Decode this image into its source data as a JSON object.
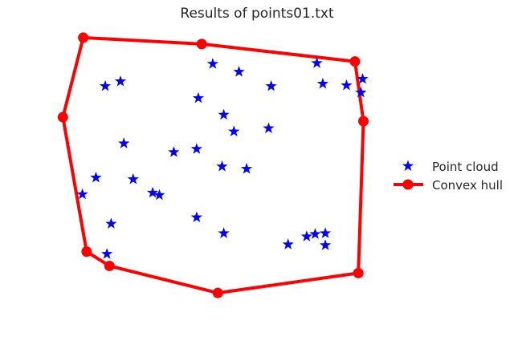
{
  "chart_data": {
    "type": "scatter",
    "title": "Results of points01.txt",
    "xlabel": "",
    "ylabel": "",
    "xlim": [
      0,
      370
    ],
    "ylim": [
      0,
      350
    ],
    "grid": false,
    "axes_visible": false,
    "legend_position": "center-right",
    "series": [
      {
        "name": "Point cloud",
        "kind": "markers",
        "marker": "star",
        "color": "#0000ff",
        "points": [
          [
            58,
            282
          ],
          [
            78,
            143
          ],
          [
            112,
            205
          ],
          [
            120,
            208
          ],
          [
            63,
            244
          ],
          [
            45,
            186
          ],
          [
            89,
            188
          ],
          [
            29,
            207
          ],
          [
            137,
            154
          ],
          [
            223,
            175
          ],
          [
            164,
            150
          ],
          [
            208,
            128
          ],
          [
            272,
            270
          ],
          [
            316,
            271
          ],
          [
            249,
            124
          ],
          [
            166,
            86
          ],
          [
            304,
            257
          ],
          [
            316,
            256
          ],
          [
            294,
            260
          ],
          [
            194,
            172
          ],
          [
            164,
            236
          ],
          [
            196,
            256
          ],
          [
            196,
            107
          ],
          [
            214,
            53
          ],
          [
            74,
            65
          ],
          [
            56,
            71
          ],
          [
            360,
            62
          ],
          [
            313,
            68
          ],
          [
            341,
            70
          ],
          [
            306,
            42
          ],
          [
            252,
            71
          ],
          [
            358,
            79
          ],
          [
            183,
            43
          ]
        ]
      },
      {
        "name": "Convex hull",
        "kind": "line-markers",
        "marker": "circle",
        "color": "#ff0000",
        "points": [
          [
            30,
            10
          ],
          [
            170,
            18
          ],
          [
            351,
            40
          ],
          [
            361,
            115
          ],
          [
            355,
            306
          ],
          [
            189,
            331
          ],
          [
            61,
            297
          ],
          [
            34,
            279
          ],
          [
            6,
            110
          ],
          [
            30,
            10
          ]
        ]
      }
    ]
  }
}
